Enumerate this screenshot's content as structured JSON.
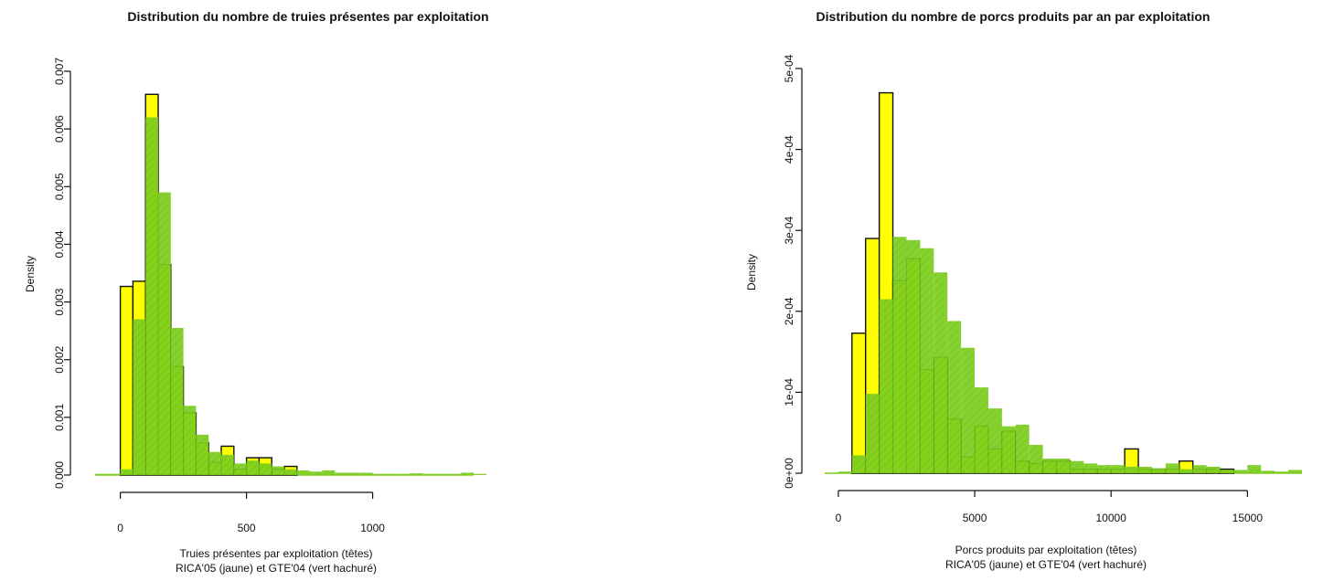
{
  "chart_data": [
    {
      "type": "bar",
      "subtype": "histogram-overlay",
      "title": "Distribution du nombre de truies présentes par exploitation",
      "xlabel": "Truies présentes par exploitation (têtes)",
      "xlabel_line2": "RICA'05 (jaune) et GTE'04 (vert hachuré)",
      "ylabel": "Density",
      "xlim": [
        -100,
        1400
      ],
      "ylim": [
        0,
        0.007
      ],
      "x_ticks": [
        0,
        500,
        1000
      ],
      "x_tick_labels": [
        "0",
        "500",
        "1000"
      ],
      "y_ticks": [
        0,
        0.001,
        0.002,
        0.003,
        0.004,
        0.005,
        0.006,
        0.007
      ],
      "y_tick_labels": [
        "0.000",
        "0.001",
        "0.002",
        "0.003",
        "0.004",
        "0.005",
        "0.006",
        "0.007"
      ],
      "bin_width": 50,
      "colors": {
        "series_a": "#ffff00",
        "series_b": "#7ccd1e",
        "outline": "#111111"
      },
      "series": [
        {
          "name": "RICA'05 (jaune)",
          "bin_start": 0,
          "values": [
            0.00327,
            0.00336,
            0.0066,
            0.00365,
            0.00188,
            0.00108,
            0.00056,
            0.00022,
            0.0005,
            0.0001,
            0.0003,
            0.0003,
            0.0001,
            0.00015
          ]
        },
        {
          "name": "GTE'04 (vert hachuré)",
          "bin_start": -100,
          "values": [
            2e-05,
            2e-05,
            0.0001,
            0.0027,
            0.0062,
            0.0049,
            0.00255,
            0.0012,
            0.0007,
            0.0004,
            0.00035,
            0.0002,
            0.00025,
            0.0002,
            0.00015,
            0.0001,
            8e-05,
            6e-05,
            8e-05,
            4e-05,
            4e-05,
            4e-05,
            2e-05,
            2e-05,
            2e-05,
            3e-05,
            2e-05,
            2e-05,
            2e-05,
            4e-05,
            2e-05
          ]
        }
      ]
    },
    {
      "type": "bar",
      "subtype": "histogram-overlay",
      "title": "Distribution du nombre de porcs produits par an par exploitation",
      "xlabel": "Porcs produits par exploitation (têtes)",
      "xlabel_line2": "RICA'05 (jaune) et GTE'04 (vert hachuré)",
      "ylabel": "Density",
      "xlim": [
        -500,
        17000
      ],
      "ylim": [
        0,
        0.0005
      ],
      "x_ticks": [
        0,
        5000,
        10000,
        15000
      ],
      "x_tick_labels": [
        "0",
        "5000",
        "10000",
        "15000"
      ],
      "y_ticks": [
        0,
        0.0001,
        0.0002,
        0.0003,
        0.0004,
        0.0005
      ],
      "y_tick_labels": [
        "0e+00",
        "1e-04",
        "2e-04",
        "3e-04",
        "4e-04",
        "5e-04"
      ],
      "bin_width": 500,
      "colors": {
        "series_a": "#ffff00",
        "series_b": "#7ccd1e",
        "outline": "#111111"
      },
      "series": [
        {
          "name": "RICA'05 (jaune)",
          "bin_start": 500,
          "values": [
            0.000173,
            0.00029,
            0.00047,
            0.000238,
            0.000265,
            0.000128,
            0.000143,
            6.7e-05,
            2e-05,
            5.8e-05,
            3e-05,
            5.2e-05,
            1.5e-05,
            1.2e-05,
            1.5e-05,
            1.5e-05,
            5e-06,
            5e-06,
            5e-06,
            5e-06,
            3e-05,
            5e-06,
            5e-06,
            5e-06,
            1.5e-05,
            5e-06,
            5e-06,
            5e-06
          ]
        },
        {
          "name": "GTE'04 (vert hachuré)",
          "bin_start": 0,
          "values": [
            2e-06,
            2.2e-05,
            9.8e-05,
            0.000215,
            0.000292,
            0.000288,
            0.000278,
            0.000248,
            0.000188,
            0.000155,
            0.000106,
            8e-05,
            5.8e-05,
            6e-05,
            3.5e-05,
            1.8e-05,
            1.8e-05,
            1.5e-05,
            1.2e-05,
            1e-05,
            1e-05,
            8e-06,
            8e-06,
            6e-06,
            1.2e-05,
            5e-06,
            1e-05,
            8e-06,
            4e-06,
            4e-06,
            1e-05,
            3e-06,
            2e-06,
            4e-06
          ]
        }
      ]
    }
  ]
}
